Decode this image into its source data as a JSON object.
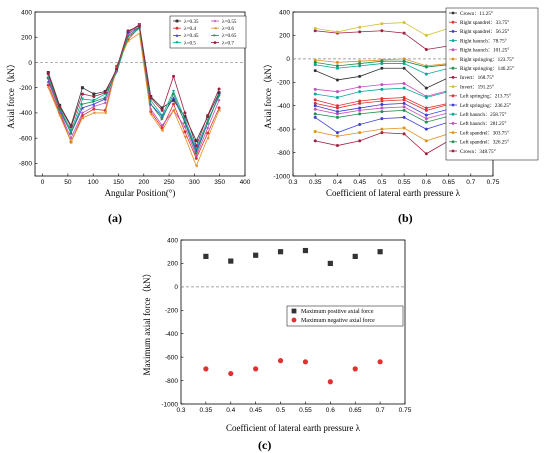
{
  "panels": {
    "a": {
      "label": "(a)"
    },
    "b": {
      "label": "(b)"
    },
    "c": {
      "label": "(c)"
    }
  },
  "chart_data": [
    {
      "type": "line",
      "panel": "a",
      "xlabel": "Angular Position(°)",
      "ylabel": "Axial force（kN）",
      "xlim": [
        -15,
        400
      ],
      "ylim": [
        -900,
        400
      ],
      "xticks": [
        0,
        50,
        100,
        150,
        200,
        250,
        300,
        350,
        400
      ],
      "yticks": [
        -800,
        -600,
        -400,
        -200,
        0,
        200,
        400
      ],
      "zero_line": true,
      "legend_position": "top-right",
      "x": [
        11.25,
        33.75,
        56.25,
        78.75,
        101.25,
        123.75,
        146.25,
        168.75,
        191.25,
        213.75,
        236.25,
        258.75,
        281.25,
        303.75,
        326.25,
        348.75
      ],
      "series": [
        {
          "name": "λ=0.35",
          "color": "#333333",
          "marker": "square",
          "values": [
            -80,
            -340,
            -500,
            -200,
            -250,
            -230,
            -60,
            240,
            300,
            -270,
            -360,
            -300,
            -430,
            -620,
            -430,
            -240
          ]
        },
        {
          "name": "λ=0.4",
          "color": "#e03030",
          "marker": "circle",
          "values": [
            -180,
            -400,
            -630,
            -420,
            -370,
            -380,
            -30,
            180,
            280,
            -390,
            -520,
            -330,
            -550,
            -760,
            -560,
            -360
          ]
        },
        {
          "name": "λ=0.45",
          "color": "#4040d0",
          "marker": "triangle",
          "values": [
            -150,
            -380,
            -560,
            -360,
            -330,
            -290,
            -50,
            230,
            280,
            -330,
            -430,
            -280,
            -470,
            -700,
            -480,
            -250
          ]
        },
        {
          "name": "λ=0.5",
          "color": "#00aa99",
          "marker": "triangle-down",
          "values": [
            -100,
            -360,
            -540,
            -290,
            -300,
            -250,
            -80,
            200,
            270,
            -300,
            -420,
            -230,
            -450,
            -680,
            -460,
            -270
          ]
        },
        {
          "name": "λ=0.55",
          "color": "#c050c0",
          "marker": "diamond",
          "values": [
            -130,
            -390,
            -600,
            -400,
            -350,
            -320,
            -70,
            220,
            300,
            -370,
            -500,
            -380,
            -510,
            -740,
            -520,
            -300
          ]
        },
        {
          "name": "λ=0.6",
          "color": "#e09020",
          "marker": "triangle-left",
          "values": [
            -200,
            -420,
            -630,
            -440,
            -400,
            -400,
            -40,
            170,
            230,
            -410,
            -540,
            -380,
            -590,
            -820,
            -600,
            -380
          ]
        },
        {
          "name": "λ=0.65",
          "color": "#209050",
          "marker": "triangle-right",
          "values": [
            -120,
            -370,
            -560,
            -330,
            -310,
            -280,
            -60,
            210,
            280,
            -330,
            -450,
            -250,
            -480,
            -720,
            -480,
            -260
          ]
        },
        {
          "name": "λ=0.7",
          "color": "#a02040",
          "marker": "hexagon",
          "values": [
            -90,
            -350,
            -510,
            -250,
            -270,
            -240,
            -50,
            250,
            290,
            -280,
            -380,
            -110,
            -400,
            -660,
            -420,
            -210
          ]
        }
      ]
    },
    {
      "type": "line",
      "panel": "b",
      "xlabel": "Coefficient of lateral earth pressure λ",
      "ylabel": "Axial force（kN）",
      "xlim": [
        0.3,
        0.75
      ],
      "ylim": [
        -1000,
        400
      ],
      "xticks": [
        0.3,
        0.35,
        0.4,
        0.45,
        0.5,
        0.55,
        0.6,
        0.65,
        0.7,
        0.75
      ],
      "yticks": [
        -1000,
        -800,
        -600,
        -400,
        -200,
        0,
        200,
        400
      ],
      "zero_line": true,
      "legend_position": "right",
      "x": [
        0.35,
        0.4,
        0.45,
        0.5,
        0.55,
        0.6,
        0.65,
        0.7
      ],
      "series": [
        {
          "name": "Crown：11.25°",
          "color": "#333333",
          "values": [
            -100,
            -180,
            -150,
            -80,
            -80,
            -250,
            -160,
            -120
          ]
        },
        {
          "name": "Right spandrel：33.75°",
          "color": "#e03030",
          "values": [
            -350,
            -400,
            -360,
            -340,
            -330,
            -420,
            -380,
            -370
          ]
        },
        {
          "name": "Right spandrel：56.25°",
          "color": "#4040d0",
          "values": [
            -500,
            -630,
            -560,
            -510,
            -500,
            -600,
            -540,
            -510
          ]
        },
        {
          "name": "Right haunch：78.75°",
          "color": "#00aa99",
          "values": [
            -50,
            -80,
            -60,
            -40,
            -40,
            -130,
            -80,
            -60
          ]
        },
        {
          "name": "Right haunch：101.25°",
          "color": "#c050c0",
          "values": [
            -260,
            -280,
            -240,
            -220,
            -210,
            -320,
            -270,
            -250
          ]
        },
        {
          "name": "Right springing：123.75°",
          "color": "#e09020",
          "values": [
            -10,
            -30,
            -20,
            -10,
            0,
            -60,
            -40,
            -30
          ]
        },
        {
          "name": "Right springing：146.25°",
          "color": "#209050",
          "values": [
            -30,
            -60,
            -40,
            -20,
            -20,
            -70,
            -50,
            -40
          ]
        },
        {
          "name": "Invert：168.75°",
          "color": "#a02040",
          "values": [
            240,
            220,
            230,
            240,
            220,
            80,
            110,
            130
          ]
        },
        {
          "name": "Invert：191.25°",
          "color": "#d0c040",
          "values": [
            260,
            230,
            270,
            300,
            310,
            200,
            260,
            300
          ]
        },
        {
          "name": "Left springing：213.75°",
          "color": "#e03030",
          "values": [
            -380,
            -420,
            -380,
            -360,
            -350,
            -440,
            -390,
            -380
          ]
        },
        {
          "name": "Left springing：236.25°",
          "color": "#4040d0",
          "values": [
            -400,
            -450,
            -420,
            -390,
            -380,
            -480,
            -430,
            -410
          ]
        },
        {
          "name": "Left haunch：258.75°",
          "color": "#00aa99",
          "values": [
            -300,
            -330,
            -280,
            -260,
            -250,
            -330,
            -280,
            -260
          ]
        },
        {
          "name": "Left haunch：281.25°",
          "color": "#c050c0",
          "values": [
            -430,
            -470,
            -440,
            -420,
            -410,
            -510,
            -460,
            -440
          ]
        },
        {
          "name": "Left spandrel：303.75°",
          "color": "#e09020",
          "values": [
            -620,
            -660,
            -630,
            -600,
            -590,
            -700,
            -640,
            -620
          ]
        },
        {
          "name": "Left spandrel：326.25°",
          "color": "#209050",
          "values": [
            -470,
            -500,
            -470,
            -450,
            -440,
            -540,
            -490,
            -470
          ]
        },
        {
          "name": "Crown：348.75°",
          "color": "#a02040",
          "values": [
            -700,
            -740,
            -700,
            -630,
            -640,
            -810,
            -700,
            -640
          ]
        }
      ]
    },
    {
      "type": "scatter",
      "panel": "c",
      "xlabel": "Coefficient of lateral earth pressure λ",
      "ylabel": "Maximum axial force（kN）",
      "xlim": [
        0.3,
        0.75
      ],
      "ylim": [
        -1000,
        400
      ],
      "xticks": [
        0.3,
        0.35,
        0.4,
        0.45,
        0.5,
        0.55,
        0.6,
        0.65,
        0.7,
        0.75
      ],
      "yticks": [
        -1000,
        -800,
        -600,
        -400,
        -200,
        0,
        200,
        400
      ],
      "zero_line": true,
      "legend_position": "right",
      "x": [
        0.35,
        0.4,
        0.45,
        0.5,
        0.55,
        0.6,
        0.65,
        0.7
      ],
      "series": [
        {
          "name": "Maximum positive axial force",
          "color": "#333333",
          "marker": "square",
          "values": [
            260,
            220,
            270,
            300,
            310,
            200,
            260,
            300
          ]
        },
        {
          "name": "Maximum negative axial force",
          "color": "#e03030",
          "marker": "circle",
          "values": [
            -700,
            -740,
            -700,
            -630,
            -640,
            -810,
            -700,
            -640
          ]
        }
      ]
    }
  ]
}
